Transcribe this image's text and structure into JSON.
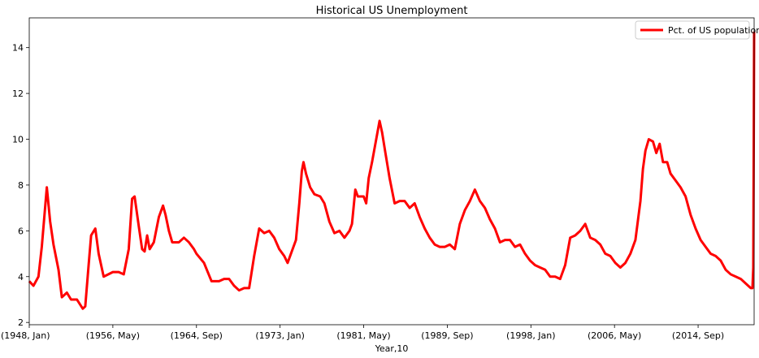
{
  "chart_data": {
    "type": "line",
    "title": "Historical US Unemployment",
    "xlabel": "Year,10",
    "ylabel": "",
    "x_start": "1948-01",
    "x_end": "2020-04",
    "xlim": [
      "1948-01",
      "2020-04"
    ],
    "ylim": [
      1.9,
      15.3
    ],
    "x_ticks": [
      {
        "date": "1948-01",
        "label": "(1948, Jan)"
      },
      {
        "date": "1956-05",
        "label": "(1956, May)"
      },
      {
        "date": "1964-09",
        "label": "(1964, Sep)"
      },
      {
        "date": "1973-01",
        "label": "(1973, Jan)"
      },
      {
        "date": "1981-05",
        "label": "(1981, May)"
      },
      {
        "date": "1989-09",
        "label": "(1989, Sep)"
      },
      {
        "date": "1998-01",
        "label": "(1998, Jan)"
      },
      {
        "date": "2006-05",
        "label": "(2006, May)"
      },
      {
        "date": "2014-09",
        "label": "(2014, Sep)"
      }
    ],
    "y_ticks": [
      2,
      4,
      6,
      8,
      10,
      12,
      14
    ],
    "grid": false,
    "legend_position": "top-right",
    "series": [
      {
        "name": "Pct. of US population",
        "color": "#ff0000",
        "points": [
          [
            "1948-01",
            3.8
          ],
          [
            "1948-06",
            3.6
          ],
          [
            "1948-12",
            4.0
          ],
          [
            "1949-04",
            5.3
          ],
          [
            "1949-07",
            6.6
          ],
          [
            "1949-10",
            7.9
          ],
          [
            "1950-02",
            6.4
          ],
          [
            "1950-06",
            5.4
          ],
          [
            "1950-12",
            4.3
          ],
          [
            "1951-04",
            3.1
          ],
          [
            "1951-10",
            3.3
          ],
          [
            "1952-03",
            3.0
          ],
          [
            "1952-10",
            3.0
          ],
          [
            "1953-05",
            2.6
          ],
          [
            "1953-08",
            2.7
          ],
          [
            "1953-12",
            4.5
          ],
          [
            "1954-03",
            5.8
          ],
          [
            "1954-08",
            6.1
          ],
          [
            "1954-12",
            5.0
          ],
          [
            "1955-06",
            4.0
          ],
          [
            "1956-05",
            4.2
          ],
          [
            "1956-12",
            4.2
          ],
          [
            "1957-06",
            4.1
          ],
          [
            "1957-12",
            5.2
          ],
          [
            "1958-04",
            7.4
          ],
          [
            "1958-07",
            7.5
          ],
          [
            "1958-12",
            6.2
          ],
          [
            "1959-04",
            5.2
          ],
          [
            "1959-07",
            5.1
          ],
          [
            "1959-10",
            5.8
          ],
          [
            "1960-01",
            5.2
          ],
          [
            "1960-06",
            5.5
          ],
          [
            "1960-12",
            6.6
          ],
          [
            "1961-05",
            7.1
          ],
          [
            "1961-08",
            6.7
          ],
          [
            "1961-12",
            6.0
          ],
          [
            "1962-04",
            5.5
          ],
          [
            "1962-12",
            5.5
          ],
          [
            "1963-06",
            5.7
          ],
          [
            "1963-12",
            5.5
          ],
          [
            "1964-06",
            5.2
          ],
          [
            "1964-09",
            5.0
          ],
          [
            "1965-06",
            4.6
          ],
          [
            "1966-03",
            3.8
          ],
          [
            "1966-12",
            3.8
          ],
          [
            "1967-06",
            3.9
          ],
          [
            "1967-12",
            3.9
          ],
          [
            "1968-06",
            3.6
          ],
          [
            "1968-12",
            3.4
          ],
          [
            "1969-06",
            3.5
          ],
          [
            "1969-12",
            3.5
          ],
          [
            "1970-06",
            4.9
          ],
          [
            "1970-12",
            6.1
          ],
          [
            "1971-06",
            5.9
          ],
          [
            "1971-12",
            6.0
          ],
          [
            "1972-06",
            5.7
          ],
          [
            "1972-12",
            5.2
          ],
          [
            "1973-06",
            4.9
          ],
          [
            "1973-10",
            4.6
          ],
          [
            "1974-03",
            5.1
          ],
          [
            "1974-08",
            5.6
          ],
          [
            "1974-12",
            7.2
          ],
          [
            "1975-03",
            8.6
          ],
          [
            "1975-05",
            9.0
          ],
          [
            "1975-08",
            8.5
          ],
          [
            "1976-01",
            7.9
          ],
          [
            "1976-06",
            7.6
          ],
          [
            "1977-01",
            7.5
          ],
          [
            "1977-06",
            7.2
          ],
          [
            "1977-12",
            6.4
          ],
          [
            "1978-06",
            5.9
          ],
          [
            "1978-12",
            6.0
          ],
          [
            "1979-06",
            5.7
          ],
          [
            "1979-12",
            6.0
          ],
          [
            "1980-03",
            6.3
          ],
          [
            "1980-07",
            7.8
          ],
          [
            "1980-10",
            7.5
          ],
          [
            "1981-01",
            7.5
          ],
          [
            "1981-05",
            7.5
          ],
          [
            "1981-08",
            7.2
          ],
          [
            "1981-11",
            8.3
          ],
          [
            "1982-03",
            9.0
          ],
          [
            "1982-07",
            9.8
          ],
          [
            "1982-12",
            10.8
          ],
          [
            "1983-03",
            10.3
          ],
          [
            "1983-07",
            9.4
          ],
          [
            "1983-12",
            8.3
          ],
          [
            "1984-06",
            7.2
          ],
          [
            "1984-12",
            7.3
          ],
          [
            "1985-06",
            7.3
          ],
          [
            "1985-12",
            7.0
          ],
          [
            "1986-06",
            7.2
          ],
          [
            "1986-12",
            6.6
          ],
          [
            "1987-06",
            6.1
          ],
          [
            "1987-12",
            5.7
          ],
          [
            "1988-06",
            5.4
          ],
          [
            "1988-12",
            5.3
          ],
          [
            "1989-06",
            5.3
          ],
          [
            "1989-12",
            5.4
          ],
          [
            "1990-06",
            5.2
          ],
          [
            "1990-12",
            6.3
          ],
          [
            "1991-06",
            6.9
          ],
          [
            "1991-12",
            7.3
          ],
          [
            "1992-06",
            7.8
          ],
          [
            "1992-12",
            7.3
          ],
          [
            "1993-06",
            7.0
          ],
          [
            "1993-12",
            6.5
          ],
          [
            "1994-06",
            6.1
          ],
          [
            "1994-12",
            5.5
          ],
          [
            "1995-06",
            5.6
          ],
          [
            "1995-12",
            5.6
          ],
          [
            "1996-06",
            5.3
          ],
          [
            "1996-12",
            5.4
          ],
          [
            "1997-06",
            5.0
          ],
          [
            "1997-12",
            4.7
          ],
          [
            "1998-06",
            4.5
          ],
          [
            "1998-12",
            4.4
          ],
          [
            "1999-06",
            4.3
          ],
          [
            "1999-12",
            4.0
          ],
          [
            "2000-06",
            4.0
          ],
          [
            "2000-12",
            3.9
          ],
          [
            "2001-06",
            4.5
          ],
          [
            "2001-12",
            5.7
          ],
          [
            "2002-06",
            5.8
          ],
          [
            "2002-12",
            6.0
          ],
          [
            "2003-06",
            6.3
          ],
          [
            "2003-12",
            5.7
          ],
          [
            "2004-06",
            5.6
          ],
          [
            "2004-12",
            5.4
          ],
          [
            "2005-06",
            5.0
          ],
          [
            "2005-12",
            4.9
          ],
          [
            "2006-06",
            4.6
          ],
          [
            "2006-12",
            4.4
          ],
          [
            "2007-06",
            4.6
          ],
          [
            "2007-12",
            5.0
          ],
          [
            "2008-06",
            5.6
          ],
          [
            "2008-12",
            7.3
          ],
          [
            "2009-03",
            8.7
          ],
          [
            "2009-06",
            9.5
          ],
          [
            "2009-10",
            10.0
          ],
          [
            "2010-03",
            9.9
          ],
          [
            "2010-07",
            9.4
          ],
          [
            "2010-11",
            9.8
          ],
          [
            "2011-03",
            9.0
          ],
          [
            "2011-08",
            9.0
          ],
          [
            "2011-12",
            8.5
          ],
          [
            "2012-06",
            8.2
          ],
          [
            "2012-12",
            7.9
          ],
          [
            "2013-06",
            7.5
          ],
          [
            "2013-12",
            6.7
          ],
          [
            "2014-06",
            6.1
          ],
          [
            "2014-12",
            5.6
          ],
          [
            "2015-06",
            5.3
          ],
          [
            "2015-12",
            5.0
          ],
          [
            "2016-06",
            4.9
          ],
          [
            "2016-12",
            4.7
          ],
          [
            "2017-06",
            4.3
          ],
          [
            "2017-12",
            4.1
          ],
          [
            "2018-06",
            4.0
          ],
          [
            "2018-12",
            3.9
          ],
          [
            "2019-06",
            3.7
          ],
          [
            "2019-12",
            3.5
          ],
          [
            "2020-02",
            3.5
          ],
          [
            "2020-03",
            4.4
          ],
          [
            "2020-04",
            14.7
          ]
        ]
      }
    ]
  }
}
